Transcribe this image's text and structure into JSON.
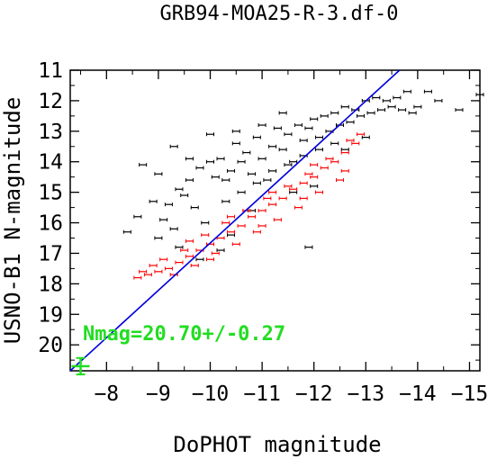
{
  "chart_data": {
    "type": "scatter",
    "title": "GRB94-MOA25-R-3.df-0",
    "xlabel": "DoPHOT magnitude",
    "ylabel": "USNO-B1 N-magnitude",
    "xlim": [
      -7.3,
      -15.2
    ],
    "ylim": [
      20.85,
      11.0
    ],
    "x_ticks": [
      -8,
      -9,
      -10,
      -11,
      -12,
      -13,
      -14,
      -15
    ],
    "x_tick_labels": [
      "−8",
      "−9",
      "−10",
      "−11",
      "−12",
      "−13",
      "−14",
      "−15"
    ],
    "y_ticks": [
      11,
      12,
      13,
      14,
      15,
      16,
      17,
      18,
      19,
      20
    ],
    "y_tick_labels": [
      "11",
      "12",
      "13",
      "14",
      "15",
      "16",
      "17",
      "18",
      "19",
      "20"
    ],
    "fit_line": {
      "x": [
        -7.3,
        -13.65
      ],
      "y": [
        20.85,
        11.0
      ],
      "color": "#0000dd"
    },
    "annotation": {
      "text": "Nmag=20.70+/-0.27",
      "color": "#22dd22"
    },
    "zero_point": {
      "x": -7.5,
      "y": 20.7,
      "yerr": 0.27,
      "color": "#22dd22"
    },
    "series": [
      {
        "color": "#000000",
        "points": [
          [
            -9.2,
            15.4
          ],
          [
            -9.5,
            15.1
          ],
          [
            -9.1,
            15.9
          ],
          [
            -9.3,
            16.2
          ],
          [
            -9.0,
            16.5
          ],
          [
            -9.4,
            14.9
          ],
          [
            -9.6,
            14.6
          ],
          [
            -9.8,
            14.2
          ],
          [
            -9.7,
            15.5
          ],
          [
            -10.0,
            14.0
          ],
          [
            -10.1,
            14.5
          ],
          [
            -10.2,
            13.9
          ],
          [
            -10.3,
            14.6
          ],
          [
            -10.4,
            14.3
          ],
          [
            -10.5,
            13.4
          ],
          [
            -10.6,
            14.0
          ],
          [
            -10.7,
            13.7
          ],
          [
            -10.8,
            14.4
          ],
          [
            -10.9,
            13.2
          ],
          [
            -11.0,
            13.9
          ],
          [
            -11.1,
            14.6
          ],
          [
            -11.2,
            13.5
          ],
          [
            -11.3,
            12.9
          ],
          [
            -11.4,
            13.6
          ],
          [
            -11.5,
            13.1
          ],
          [
            -11.6,
            14.0
          ],
          [
            -11.7,
            12.8
          ],
          [
            -11.8,
            13.3
          ],
          [
            -11.9,
            12.9
          ],
          [
            -12.0,
            12.6
          ],
          [
            -12.1,
            13.2
          ],
          [
            -12.2,
            12.5
          ],
          [
            -12.3,
            13.0
          ],
          [
            -12.4,
            12.4
          ],
          [
            -12.5,
            12.8
          ],
          [
            -12.6,
            12.2
          ],
          [
            -12.7,
            12.7
          ],
          [
            -12.8,
            12.3
          ],
          [
            -12.9,
            12.5
          ],
          [
            -13.0,
            12.0
          ],
          [
            -13.1,
            12.4
          ],
          [
            -13.2,
            11.9
          ],
          [
            -13.3,
            12.3
          ],
          [
            -13.4,
            12.0
          ],
          [
            -13.5,
            12.2
          ],
          [
            -13.6,
            11.9
          ],
          [
            -13.7,
            12.3
          ],
          [
            -13.8,
            11.7
          ],
          [
            -13.9,
            12.4
          ],
          [
            -14.0,
            12.2
          ],
          [
            -14.2,
            11.7
          ],
          [
            -14.4,
            12.0
          ],
          [
            -14.8,
            12.3
          ],
          [
            -15.2,
            11.8
          ],
          [
            -9.9,
            16.0
          ],
          [
            -10.3,
            15.3
          ],
          [
            -10.6,
            15.0
          ],
          [
            -10.9,
            14.7
          ],
          [
            -11.2,
            14.3
          ],
          [
            -11.5,
            14.1
          ],
          [
            -11.8,
            13.8
          ],
          [
            -12.1,
            13.6
          ],
          [
            -12.4,
            13.4
          ],
          [
            -8.9,
            15.3
          ],
          [
            -8.7,
            14.1
          ],
          [
            -9.3,
            13.5
          ],
          [
            -9.0,
            14.4
          ],
          [
            -9.6,
            13.9
          ],
          [
            -10.0,
            13.1
          ],
          [
            -10.5,
            13.0
          ],
          [
            -11.0,
            12.8
          ],
          [
            -11.4,
            12.4
          ],
          [
            -11.9,
            16.8
          ],
          [
            -10.4,
            16.4
          ],
          [
            -9.8,
            17.2
          ],
          [
            -8.4,
            16.3
          ],
          [
            -8.6,
            15.8
          ],
          [
            -9.4,
            16.8
          ],
          [
            -10.8,
            15.6
          ],
          [
            -11.6,
            15.0
          ],
          [
            -12.0,
            14.8
          ],
          [
            -12.6,
            13.6
          ],
          [
            -13.0,
            13.2
          ],
          [
            -10.2,
            16.9
          ]
        ]
      },
      {
        "color": "#ff0000",
        "points": [
          [
            -8.6,
            17.8
          ],
          [
            -8.8,
            17.7
          ],
          [
            -9.0,
            17.6
          ],
          [
            -9.2,
            17.5
          ],
          [
            -9.4,
            17.3
          ],
          [
            -9.6,
            17.1
          ],
          [
            -9.8,
            16.9
          ],
          [
            -10.0,
            16.7
          ],
          [
            -10.2,
            16.5
          ],
          [
            -10.4,
            16.3
          ],
          [
            -10.6,
            16.1
          ],
          [
            -10.8,
            15.8
          ],
          [
            -11.0,
            15.6
          ],
          [
            -11.2,
            15.4
          ],
          [
            -11.4,
            15.2
          ],
          [
            -11.6,
            14.9
          ],
          [
            -11.8,
            14.7
          ],
          [
            -12.0,
            14.5
          ],
          [
            -12.2,
            14.2
          ],
          [
            -12.4,
            14.0
          ],
          [
            -12.6,
            13.7
          ],
          [
            -12.8,
            13.4
          ],
          [
            -9.1,
            17.2
          ],
          [
            -9.5,
            16.9
          ],
          [
            -9.9,
            16.4
          ],
          [
            -10.3,
            16.0
          ],
          [
            -10.7,
            15.6
          ],
          [
            -11.1,
            15.2
          ],
          [
            -11.5,
            14.8
          ],
          [
            -11.9,
            14.4
          ],
          [
            -12.3,
            13.9
          ],
          [
            -12.7,
            13.3
          ],
          [
            -9.3,
            17.7
          ],
          [
            -9.7,
            17.4
          ],
          [
            -10.1,
            17.0
          ],
          [
            -10.5,
            16.7
          ],
          [
            -10.9,
            16.3
          ],
          [
            -11.3,
            15.9
          ],
          [
            -11.7,
            15.5
          ],
          [
            -12.1,
            15.0
          ],
          [
            -12.5,
            14.6
          ],
          [
            -8.9,
            17.4
          ],
          [
            -9.6,
            16.6
          ],
          [
            -10.4,
            15.8
          ],
          [
            -11.2,
            15.0
          ],
          [
            -12.0,
            14.1
          ],
          [
            -12.9,
            13.1
          ],
          [
            -8.7,
            17.6
          ],
          [
            -10.0,
            17.2
          ],
          [
            -11.0,
            16.1
          ],
          [
            -11.8,
            15.2
          ],
          [
            -12.6,
            14.3
          ]
        ]
      }
    ]
  }
}
